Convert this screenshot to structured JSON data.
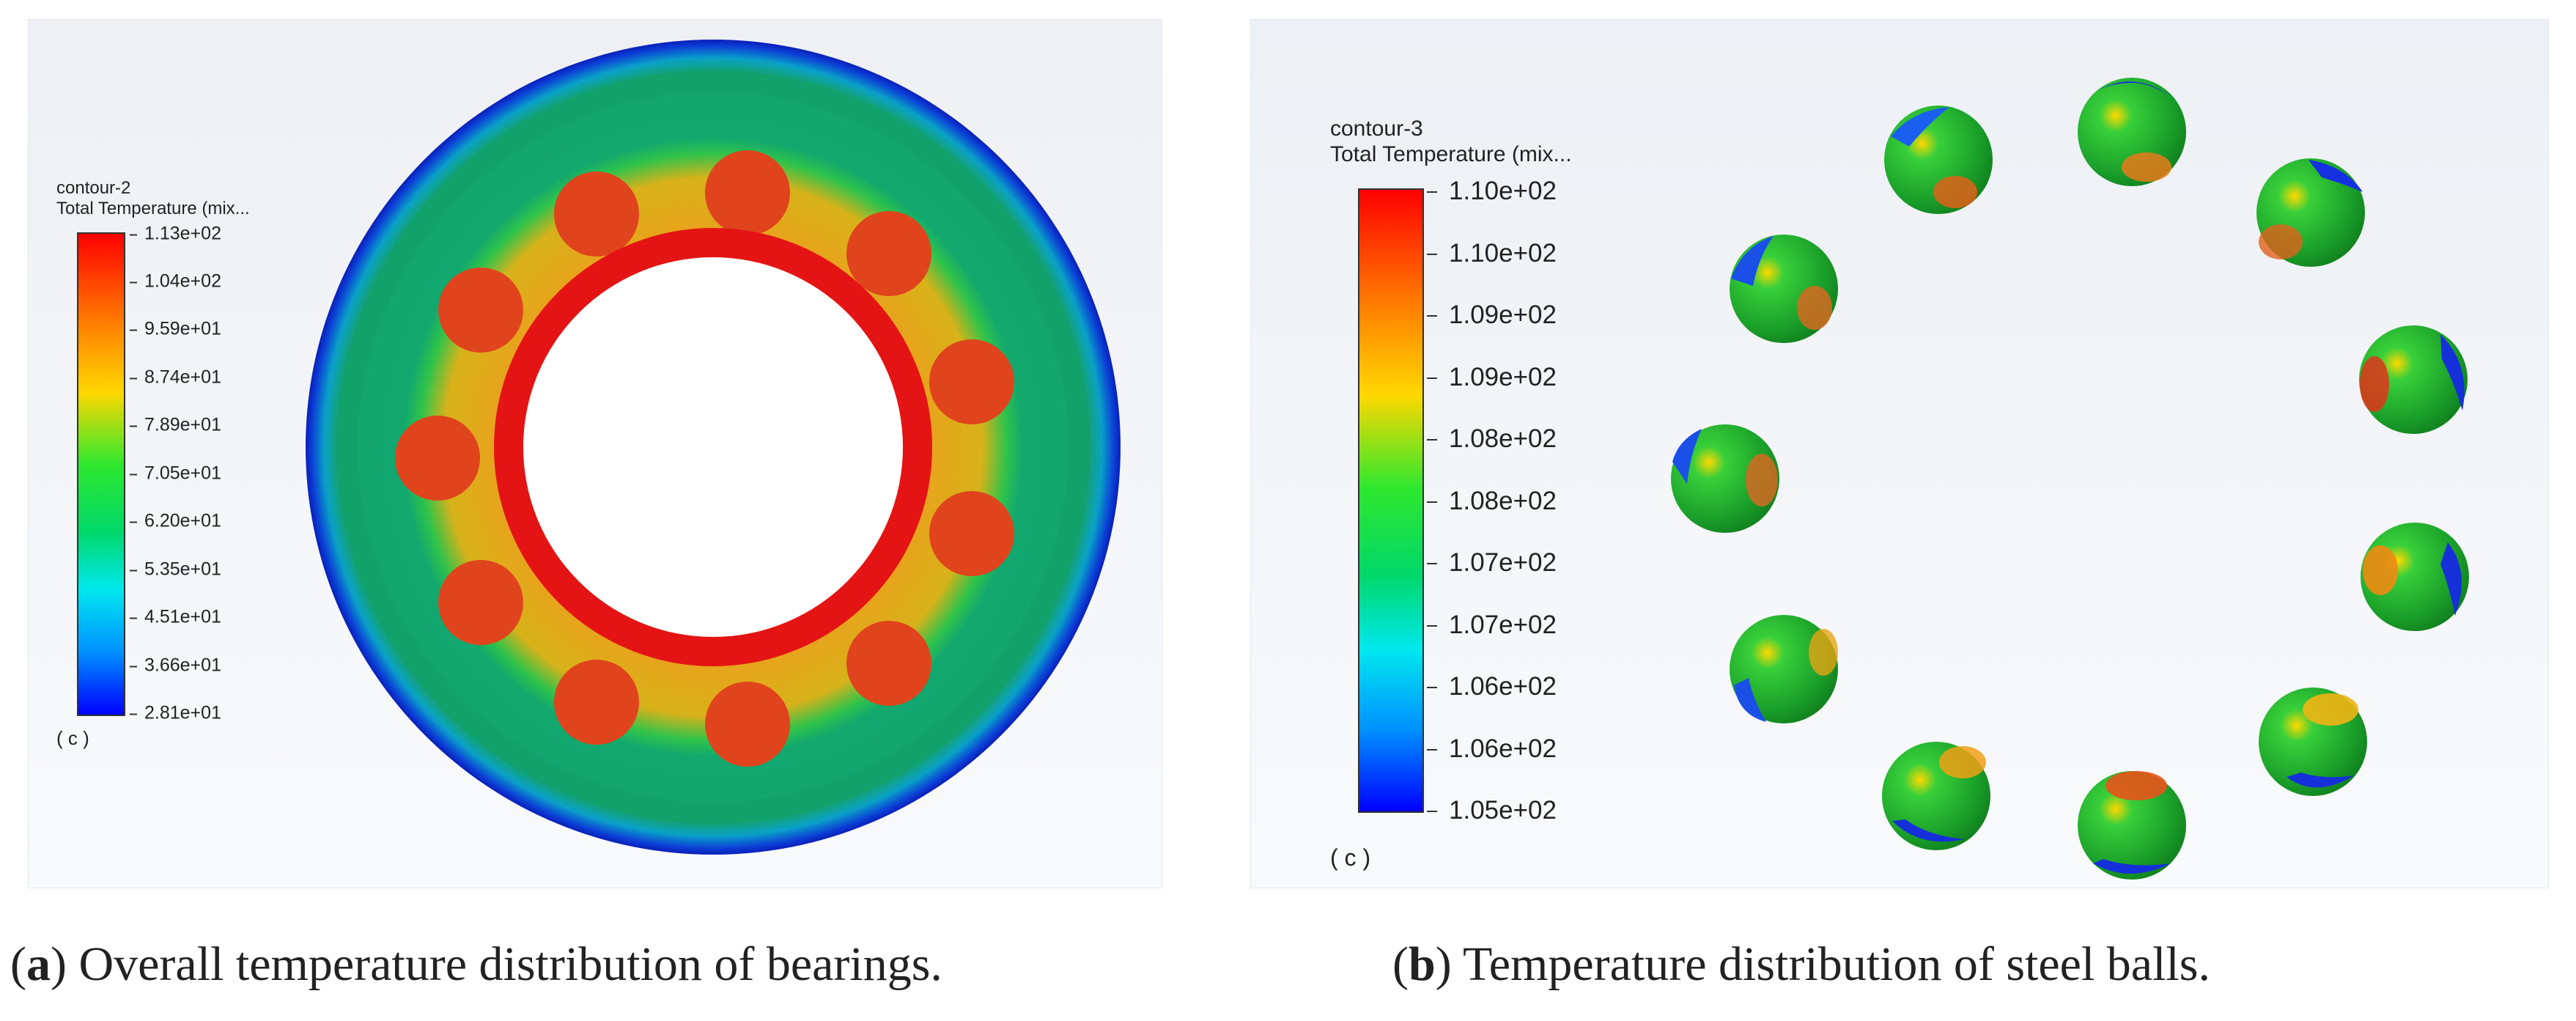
{
  "panel_a": {
    "legend": {
      "name": "contour-2",
      "quantity": "Total Temperature (mix...",
      "ticks": [
        "1.13e+02",
        "1.04e+02",
        "9.59e+01",
        "8.74e+01",
        "7.89e+01",
        "7.05e+01",
        "6.20e+01",
        "5.35e+01",
        "4.51e+01",
        "3.66e+01",
        "2.81e+01"
      ],
      "unit": "( c )"
    },
    "caption": {
      "label": "a",
      "text": "Overall temperature distribution of bearings."
    }
  },
  "panel_b": {
    "legend": {
      "name": "contour-3",
      "quantity": "Total Temperature (mix...",
      "ticks": [
        "1.10e+02",
        "1.10e+02",
        "1.09e+02",
        "1.09e+02",
        "1.08e+02",
        "1.08e+02",
        "1.07e+02",
        "1.07e+02",
        "1.06e+02",
        "1.06e+02",
        "1.05e+02"
      ],
      "unit": "( c )"
    },
    "caption": {
      "label": "b",
      "text": "Temperature distribution of steel balls."
    }
  },
  "colors": {
    "outer_ring": "#12a86e",
    "cage": "#d8b21a",
    "ball": "#e0441c",
    "inner_ring": "#e41414",
    "ring_edge": "#0a1fb8"
  }
}
